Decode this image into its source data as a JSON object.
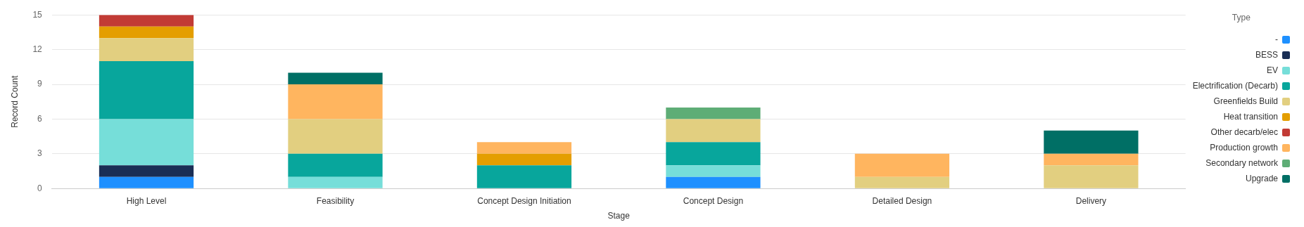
{
  "chart_data": {
    "type": "bar",
    "stacked": true,
    "xlabel": "Stage",
    "ylabel": "Record Count",
    "legend_title": "Type",
    "legend": "right",
    "grid": "y",
    "categories": [
      "High Level",
      "Feasibility",
      "Concept Design Initiation",
      "Concept Design",
      "Detailed Design",
      "Delivery"
    ],
    "ylim": [
      0,
      15
    ],
    "yticks": [
      0,
      3,
      6,
      9,
      12,
      15
    ],
    "series": [
      {
        "name": "-",
        "color": "#1e90ff",
        "values": [
          1,
          null,
          null,
          1,
          null,
          null
        ]
      },
      {
        "name": "BESS",
        "color": "#1a2e55",
        "values": [
          1,
          null,
          null,
          null,
          null,
          null
        ]
      },
      {
        "name": "EV",
        "color": "#76ded9",
        "values": [
          4,
          1,
          null,
          1,
          null,
          null
        ]
      },
      {
        "name": "Electrification (Decarb)",
        "color": "#08a69c",
        "values": [
          5,
          2,
          2,
          2,
          null,
          null
        ]
      },
      {
        "name": "Greenfields Build",
        "color": "#e2cf80",
        "values": [
          2,
          3,
          null,
          2,
          1,
          2
        ]
      },
      {
        "name": "Heat transition",
        "color": "#e49e00",
        "values": [
          1,
          null,
          1,
          null,
          null,
          null
        ]
      },
      {
        "name": "Other decarb/elec",
        "color": "#c23b35",
        "values": [
          1,
          null,
          null,
          null,
          null,
          null
        ]
      },
      {
        "name": "Production growth",
        "color": "#ffb55f",
        "values": [
          null,
          3,
          1,
          null,
          2,
          1
        ]
      },
      {
        "name": "Secondary network",
        "color": "#5ead76",
        "values": [
          null,
          null,
          null,
          1,
          null,
          null
        ]
      },
      {
        "name": "Upgrade",
        "color": "#006f65",
        "values": [
          null,
          1,
          null,
          null,
          null,
          2
        ]
      }
    ]
  }
}
